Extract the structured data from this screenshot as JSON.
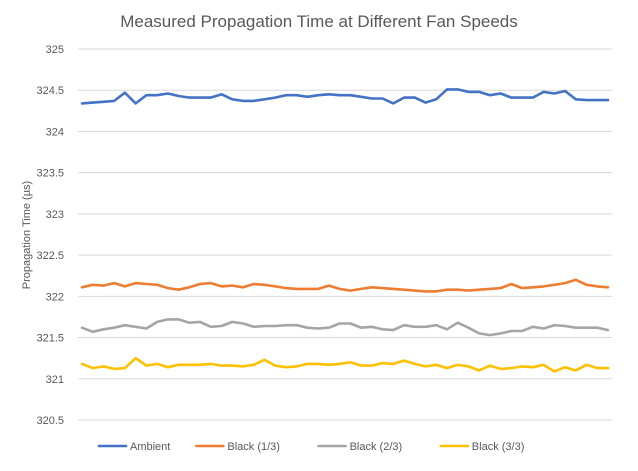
{
  "chart_data": {
    "type": "line",
    "title": "Measured Propagation Time at Different Fan Speeds",
    "xlabel": "",
    "ylabel": "Propagation Time (µs)",
    "ylim": [
      320.5,
      325
    ],
    "yticks": [
      "320.5",
      "321",
      "321.5",
      "322",
      "322.5",
      "323",
      "323.5",
      "324",
      "324.5",
      "325"
    ],
    "grid": true,
    "legend_position": "bottom",
    "x_points": 50,
    "series": [
      {
        "name": "Ambient",
        "color": "#4472C4",
        "values": [
          324.34,
          324.35,
          324.36,
          324.37,
          324.47,
          324.34,
          324.44,
          324.44,
          324.46,
          324.43,
          324.41,
          324.41,
          324.41,
          324.45,
          324.39,
          324.37,
          324.37,
          324.39,
          324.41,
          324.44,
          324.44,
          324.42,
          324.44,
          324.45,
          324.44,
          324.44,
          324.42,
          324.4,
          324.4,
          324.34,
          324.41,
          324.41,
          324.35,
          324.39,
          324.51,
          324.51,
          324.48,
          324.48,
          324.44,
          324.46,
          324.41,
          324.41,
          324.41,
          324.48,
          324.46,
          324.49,
          324.39,
          324.38,
          324.38,
          324.38
        ]
      },
      {
        "name": "Black (1/3)",
        "color": "#ED7D31",
        "values": [
          322.11,
          322.14,
          322.13,
          322.16,
          322.12,
          322.16,
          322.15,
          322.14,
          322.1,
          322.08,
          322.11,
          322.15,
          322.16,
          322.12,
          322.13,
          322.11,
          322.15,
          322.14,
          322.12,
          322.1,
          322.09,
          322.09,
          322.09,
          322.13,
          322.09,
          322.07,
          322.09,
          322.11,
          322.1,
          322.09,
          322.08,
          322.07,
          322.06,
          322.06,
          322.08,
          322.08,
          322.07,
          322.08,
          322.09,
          322.1,
          322.15,
          322.1,
          322.11,
          322.12,
          322.14,
          322.16,
          322.2,
          322.14,
          322.12,
          322.11
        ]
      },
      {
        "name": "Black (2/3)",
        "color": "#A5A5A5",
        "values": [
          321.62,
          321.57,
          321.6,
          321.62,
          321.65,
          321.63,
          321.61,
          321.69,
          321.72,
          321.72,
          321.68,
          321.69,
          321.63,
          321.64,
          321.69,
          321.67,
          321.63,
          321.64,
          321.64,
          321.65,
          321.65,
          321.62,
          321.61,
          321.62,
          321.67,
          321.67,
          321.62,
          321.63,
          321.6,
          321.59,
          321.65,
          321.63,
          321.63,
          321.65,
          321.6,
          321.68,
          321.62,
          321.55,
          321.53,
          321.55,
          321.58,
          321.58,
          321.63,
          321.61,
          321.65,
          321.64,
          321.62,
          321.62,
          321.62,
          321.59
        ]
      },
      {
        "name": "Black (3/3)",
        "color": "#FFC000",
        "values": [
          321.18,
          321.13,
          321.15,
          321.12,
          321.13,
          321.25,
          321.16,
          321.18,
          321.14,
          321.17,
          321.17,
          321.17,
          321.18,
          321.16,
          321.16,
          321.15,
          321.17,
          321.23,
          321.16,
          321.14,
          321.15,
          321.18,
          321.18,
          321.17,
          321.18,
          321.2,
          321.16,
          321.16,
          321.19,
          321.18,
          321.22,
          321.18,
          321.15,
          321.17,
          321.13,
          321.17,
          321.15,
          321.1,
          321.16,
          321.12,
          321.13,
          321.15,
          321.14,
          321.17,
          321.09,
          321.14,
          321.1,
          321.17,
          321.13,
          321.13
        ]
      }
    ]
  }
}
